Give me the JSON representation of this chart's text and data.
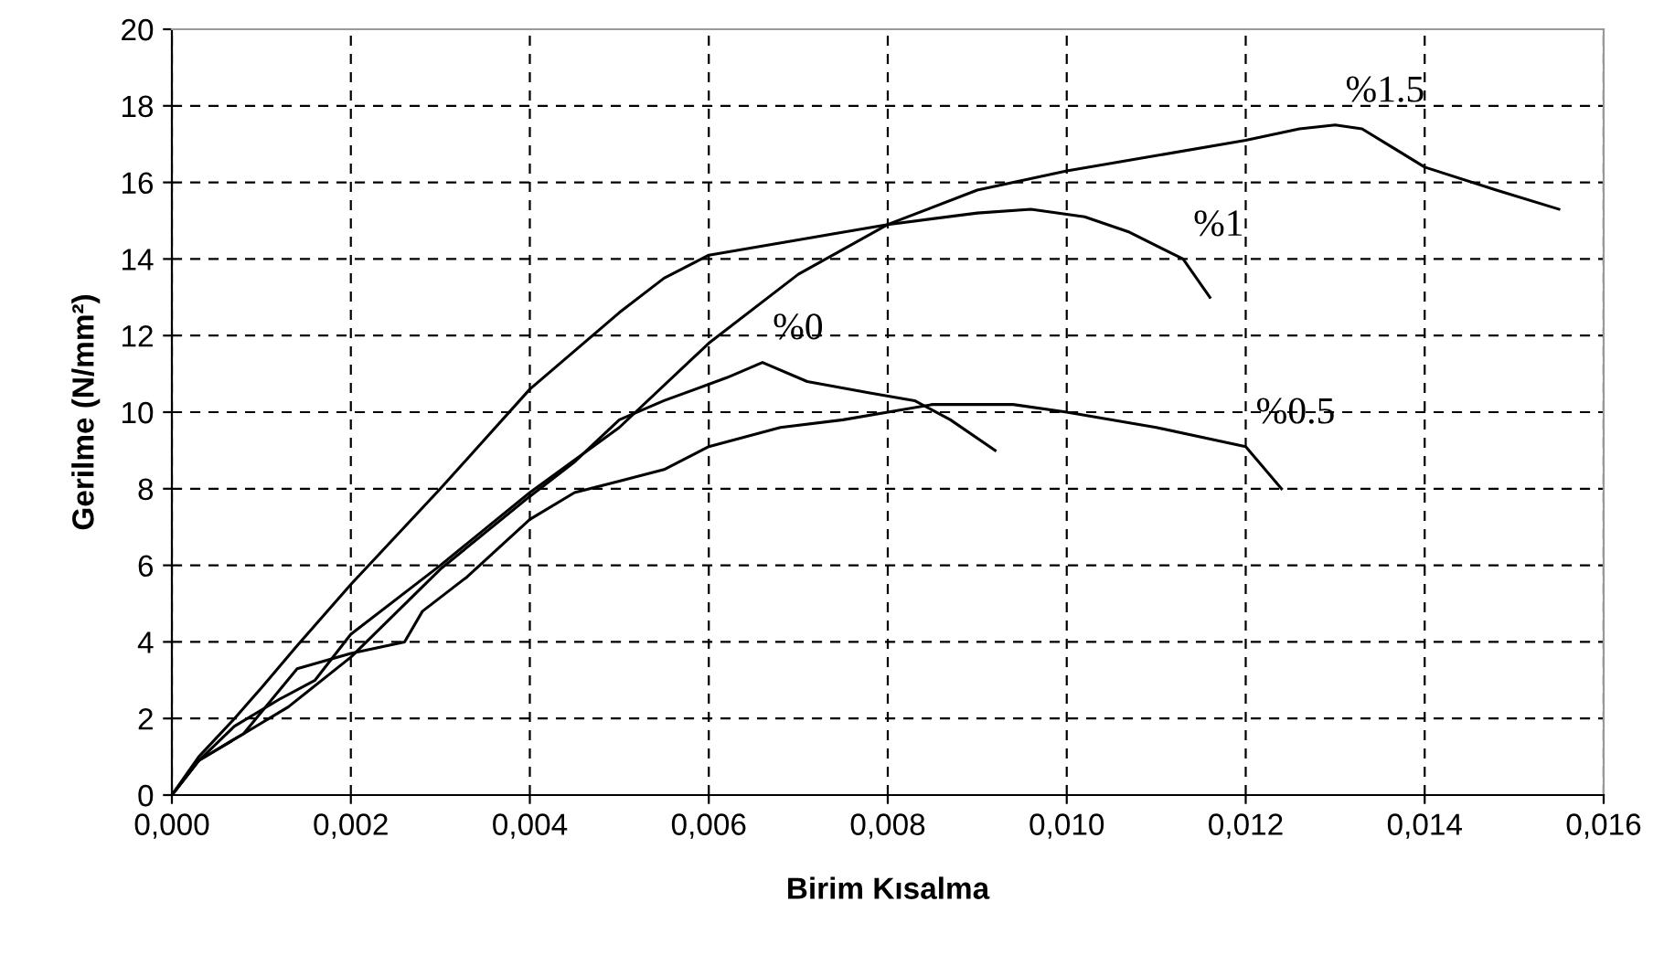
{
  "chart_data": {
    "type": "line",
    "xlabel": "Birim Kısalma",
    "ylabel": "Gerilme (N/mm²)",
    "series": [
      {
        "color": "#000000",
        "x": [
          0,
          0.0003,
          0.0008,
          0.0013,
          0.002,
          0.003,
          0.004,
          0.0045,
          0.005,
          0.0055,
          0.0062,
          0.0066,
          0.0071,
          0.0078,
          0.0083,
          0.0087,
          0.0092
        ],
        "values": [
          0,
          0.9,
          1.6,
          2.3,
          3.6,
          5.9,
          7.8,
          8.7,
          9.8,
          10.3,
          10.9,
          11.3,
          10.8,
          10.5,
          10.3,
          9.8,
          9.0
        ]
      },
      {
        "color": "#000000",
        "x": [
          0,
          0.0003,
          0.0008,
          0.0014,
          0.002,
          0.0026,
          0.0028,
          0.0033,
          0.004,
          0.0045,
          0.005,
          0.0055,
          0.006,
          0.0068,
          0.0075,
          0.008,
          0.0085,
          0.0094,
          0.01,
          0.011,
          0.012,
          0.0124
        ],
        "values": [
          0,
          0.9,
          1.6,
          3.3,
          3.7,
          4.0,
          4.8,
          5.7,
          7.2,
          7.9,
          8.2,
          8.5,
          9.1,
          9.6,
          9.8,
          10.0,
          10.2,
          10.2,
          10.0,
          9.6,
          9.1,
          8.0
        ]
      },
      {
        "color": "#000000",
        "x": [
          0,
          0.0003,
          0.0007,
          0.001,
          0.0014,
          0.002,
          0.003,
          0.004,
          0.005,
          0.0055,
          0.006,
          0.007,
          0.008,
          0.009,
          0.0096,
          0.0102,
          0.0107,
          0.0113,
          0.0116
        ],
        "values": [
          0,
          1.0,
          2.0,
          2.8,
          3.9,
          5.5,
          8.0,
          10.6,
          12.6,
          13.5,
          14.1,
          14.5,
          14.9,
          15.2,
          15.3,
          15.1,
          14.7,
          14.0,
          13.0
        ]
      },
      {
        "color": "#000000",
        "x": [
          0,
          0.0003,
          0.0007,
          0.0012,
          0.0016,
          0.002,
          0.003,
          0.004,
          0.005,
          0.006,
          0.007,
          0.008,
          0.009,
          0.01,
          0.011,
          0.012,
          0.0126,
          0.013,
          0.0133,
          0.014,
          0.0148,
          0.0155
        ],
        "values": [
          0,
          0.9,
          1.8,
          2.5,
          3.0,
          4.2,
          6.0,
          7.9,
          9.6,
          11.8,
          13.6,
          14.9,
          15.8,
          16.3,
          16.7,
          17.1,
          17.4,
          17.5,
          17.4,
          16.4,
          15.8,
          15.3
        ]
      }
    ],
    "annotations": [
      {
        "text": "%0",
        "x": 0.0066,
        "y": 11.3
      },
      {
        "text": "%0.5",
        "x": 0.012,
        "y": 9.1
      },
      {
        "text": "%1",
        "x": 0.0113,
        "y": 14.0
      },
      {
        "text": "%1.5",
        "x": 0.013,
        "y": 17.5
      }
    ],
    "xlim": [
      0,
      0.016
    ],
    "xticks": [
      {
        "value": 0,
        "label": "0,000"
      },
      {
        "value": 0.002,
        "label": "0,002"
      },
      {
        "value": 0.004,
        "label": "0,004"
      },
      {
        "value": 0.006,
        "label": "0,006"
      },
      {
        "value": 0.008,
        "label": "0,008"
      },
      {
        "value": 0.01,
        "label": "0,010"
      },
      {
        "value": 0.012,
        "label": "0,012"
      },
      {
        "value": 0.014,
        "label": "0,014"
      },
      {
        "value": 0.016,
        "label": "0,016"
      }
    ],
    "ylim": [
      0,
      20
    ],
    "yticks": [
      0,
      2,
      4,
      6,
      8,
      10,
      12,
      14,
      16,
      18,
      20
    ],
    "grid": true,
    "line_style": "solid",
    "marker": "none",
    "legend": false
  }
}
